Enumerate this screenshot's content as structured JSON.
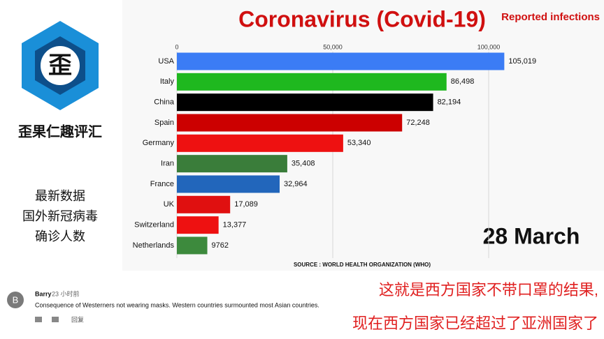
{
  "sidebar": {
    "logo_char": "歪",
    "channel": "歪果仁趣评汇",
    "lines": [
      "最新数据",
      "国外新冠病毒",
      "确诊人数"
    ]
  },
  "chart_data": {
    "type": "bar",
    "orientation": "horizontal",
    "title": "Coronavirus (Covid-19)",
    "subtitle": "Reported infections",
    "date": "28 March",
    "source": "SOURCE : WORLD HEALTH ORGANIZATION (WHO)",
    "categories": [
      "USA",
      "Italy",
      "China",
      "Spain",
      "Germany",
      "Iran",
      "France",
      "UK",
      "Switzerland",
      "Netherlands"
    ],
    "values": [
      105019,
      86498,
      82194,
      72248,
      53340,
      35408,
      32964,
      17089,
      13377,
      9762
    ],
    "value_labels": [
      "105,019",
      "86,498",
      "82,194",
      "72,248",
      "53,340",
      "35,408",
      "32,964",
      "17,089",
      "13,377",
      "9762"
    ],
    "colors": [
      "#3b7cf5",
      "#1fb81f",
      "#000000",
      "#cc0000",
      "#ee1111",
      "#3a7d3a",
      "#2266bb",
      "#e01010",
      "#ee1111",
      "#3d8a3d"
    ],
    "xlim": [
      0,
      137000
    ],
    "xticks": [
      0,
      {
        "value": 50000,
        "label": "50,000"
      },
      {
        "value": 100000,
        "label": "100,000"
      }
    ],
    "grid": true
  },
  "comment": {
    "avatar": "B",
    "author": "Barry",
    "time": "23 小时前",
    "text": "Consequence of Westerners not wearing masks. Western countries surmounted most Asian countries.",
    "reply": "回复"
  },
  "captions": [
    "这就是西方国家不带口罩的结果,",
    "现在西方国家已经超过了亚洲国家了"
  ]
}
